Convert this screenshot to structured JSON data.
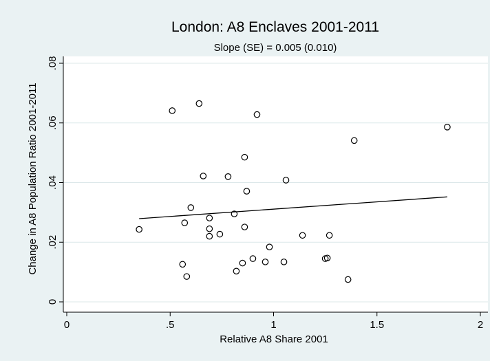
{
  "chart_data": {
    "type": "scatter",
    "title": "London: A8 Enclaves 2001-2011",
    "subtitle": "Slope (SE) = 0.005 (0.010)",
    "xlabel": "Relative A8 Share 2001",
    "ylabel": "Change in A8 Population Ratio 2001-2011",
    "xlim": [
      0,
      2
    ],
    "ylim": [
      0,
      0.08
    ],
    "xticks": [
      0,
      0.5,
      1,
      1.5,
      2
    ],
    "xtick_labels": [
      "0",
      ".5",
      "1",
      "1.5",
      "2"
    ],
    "yticks": [
      0,
      0.02,
      0.04,
      0.06,
      0.08
    ],
    "ytick_labels": [
      "0",
      ".02",
      ".04",
      ".06",
      ".08"
    ],
    "grid": "horizontal",
    "colors": {
      "background": "#eaf2f3",
      "plot_area": "#ffffff",
      "grid": "#dce8ea",
      "marker": "#000000",
      "line": "#000000"
    },
    "fit_line": {
      "x": [
        0.35,
        1.84
      ],
      "y": [
        0.0279,
        0.0352
      ]
    },
    "points": [
      {
        "x": 0.35,
        "y": 0.0243
      },
      {
        "x": 0.51,
        "y": 0.0641
      },
      {
        "x": 0.56,
        "y": 0.0126
      },
      {
        "x": 0.57,
        "y": 0.0265
      },
      {
        "x": 0.58,
        "y": 0.0085
      },
      {
        "x": 0.6,
        "y": 0.0316
      },
      {
        "x": 0.64,
        "y": 0.0665
      },
      {
        "x": 0.66,
        "y": 0.0422
      },
      {
        "x": 0.69,
        "y": 0.0281
      },
      {
        "x": 0.69,
        "y": 0.0245
      },
      {
        "x": 0.69,
        "y": 0.022
      },
      {
        "x": 0.74,
        "y": 0.0227
      },
      {
        "x": 0.78,
        "y": 0.042
      },
      {
        "x": 0.81,
        "y": 0.0295
      },
      {
        "x": 0.82,
        "y": 0.0103
      },
      {
        "x": 0.85,
        "y": 0.013
      },
      {
        "x": 0.86,
        "y": 0.0251
      },
      {
        "x": 0.86,
        "y": 0.0485
      },
      {
        "x": 0.87,
        "y": 0.0371
      },
      {
        "x": 0.9,
        "y": 0.0145
      },
      {
        "x": 0.92,
        "y": 0.0628
      },
      {
        "x": 0.96,
        "y": 0.0134
      },
      {
        "x": 0.98,
        "y": 0.0184
      },
      {
        "x": 1.05,
        "y": 0.0134
      },
      {
        "x": 1.06,
        "y": 0.0408
      },
      {
        "x": 1.14,
        "y": 0.0223
      },
      {
        "x": 1.25,
        "y": 0.0145
      },
      {
        "x": 1.26,
        "y": 0.0147
      },
      {
        "x": 1.27,
        "y": 0.0223
      },
      {
        "x": 1.36,
        "y": 0.0075
      },
      {
        "x": 1.39,
        "y": 0.0541
      },
      {
        "x": 1.84,
        "y": 0.0586
      }
    ]
  }
}
